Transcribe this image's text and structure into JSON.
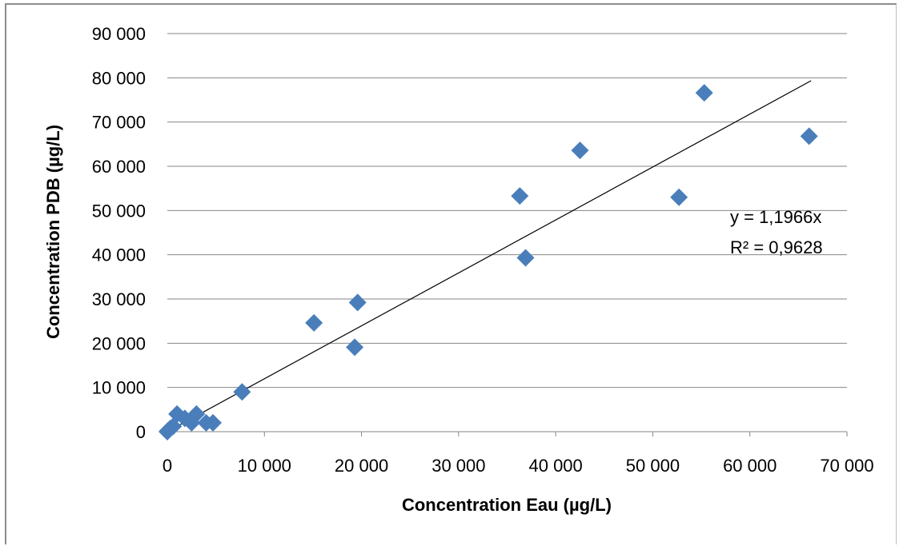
{
  "chart_data": {
    "type": "scatter",
    "title": "",
    "xlabel": "Concentration Eau (µg/L)",
    "ylabel": "Concentration PDB (µg/L)",
    "xlim": [
      0,
      70000
    ],
    "ylim": [
      0,
      90000
    ],
    "x_ticks": [
      0,
      10000,
      20000,
      30000,
      40000,
      50000,
      60000,
      70000
    ],
    "x_tick_labels": [
      "0",
      "10 000",
      "20 000",
      "30 000",
      "40 000",
      "50 000",
      "60 000",
      "70 000"
    ],
    "y_ticks": [
      0,
      10000,
      20000,
      30000,
      40000,
      50000,
      60000,
      70000,
      80000,
      90000
    ],
    "y_tick_labels": [
      "0",
      "10 000",
      "20 000",
      "30 000",
      "40 000",
      "50 000",
      "60 000",
      "70 000",
      "80 000",
      "90 000"
    ],
    "grid": "horizontal",
    "legend": "none",
    "marker": "diamond",
    "series": [
      {
        "color": "#4a7ebb",
        "points": [
          {
            "x": 0,
            "y": 0
          },
          {
            "x": 100,
            "y": 300
          },
          {
            "x": 300,
            "y": 700
          },
          {
            "x": 600,
            "y": 1200
          },
          {
            "x": 1000,
            "y": 4000
          },
          {
            "x": 1800,
            "y": 3000
          },
          {
            "x": 2500,
            "y": 2000
          },
          {
            "x": 3000,
            "y": 4000
          },
          {
            "x": 4000,
            "y": 2000
          },
          {
            "x": 4700,
            "y": 2000
          },
          {
            "x": 7700,
            "y": 9000
          },
          {
            "x": 15100,
            "y": 24600
          },
          {
            "x": 19300,
            "y": 19100
          },
          {
            "x": 19600,
            "y": 29200
          },
          {
            "x": 36300,
            "y": 53300
          },
          {
            "x": 36900,
            "y": 39300
          },
          {
            "x": 42500,
            "y": 63600
          },
          {
            "x": 52700,
            "y": 53000
          },
          {
            "x": 55300,
            "y": 76600
          },
          {
            "x": 66100,
            "y": 66800
          }
        ]
      }
    ],
    "trendline": {
      "color": "#000000",
      "slope": 1.1966,
      "x_range": [
        0,
        66300
      ],
      "equation_label": "y = 1,1966x",
      "r2_label": "R² = 0,9628"
    }
  }
}
